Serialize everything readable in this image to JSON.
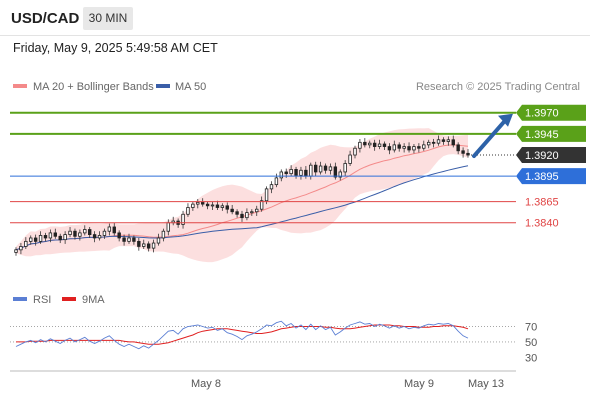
{
  "header": {
    "symbol": "USD/CAD",
    "timeframe": "30 MIN",
    "datetime": "Friday, May 9, 2025 5:49:58 AM CET"
  },
  "chart_data": [
    {
      "type": "candlestick",
      "legend": [
        {
          "name": "MA 20 + Bollinger Bands",
          "color": "#f48a8a"
        },
        {
          "name": "MA 50",
          "color": "#3a5ea8"
        }
      ],
      "credit": "Research © 2025 Trading Central",
      "x_ticks": [
        "May 8",
        "May 9",
        "May 13"
      ],
      "ylim": [
        1.377,
        1.3985
      ],
      "current_price": {
        "label": "1.3920",
        "value": 1.392,
        "color": "#333333"
      },
      "levels": [
        {
          "label": "1.3970",
          "value": 1.397,
          "kind": "resistance-target",
          "color": "#5aa119"
        },
        {
          "label": "1.3945",
          "value": 1.3945,
          "kind": "resistance",
          "color": "#5aa119"
        },
        {
          "label": "1.3895",
          "value": 1.3895,
          "kind": "pivot",
          "color": "#2e6fd9"
        },
        {
          "label": "1.3865",
          "value": 1.3865,
          "kind": "support",
          "color": "#e04545"
        },
        {
          "label": "1.3840",
          "value": 1.384,
          "kind": "support",
          "color": "#e04545"
        }
      ],
      "close_path": [
        1.3808,
        1.3812,
        1.3818,
        1.3822,
        1.3818,
        1.3825,
        1.3822,
        1.3828,
        1.3824,
        1.382,
        1.3826,
        1.383,
        1.3824,
        1.3828,
        1.3832,
        1.3826,
        1.3822,
        1.3825,
        1.383,
        1.3835,
        1.3828,
        1.3822,
        1.3818,
        1.3822,
        1.3818,
        1.3812,
        1.3815,
        1.381,
        1.3816,
        1.3822,
        1.383,
        1.384,
        1.3842,
        1.3838,
        1.385,
        1.3858,
        1.3862,
        1.3864,
        1.3862,
        1.386,
        1.3861,
        1.3858,
        1.386,
        1.3856,
        1.3853,
        1.385,
        1.3846,
        1.3852,
        1.3853,
        1.3856,
        1.3866,
        1.388,
        1.3885,
        1.3893,
        1.39,
        1.3898,
        1.3903,
        1.3896,
        1.3902,
        1.3895,
        1.3908,
        1.39,
        1.3907,
        1.3902,
        1.3906,
        1.3894,
        1.39,
        1.391,
        1.392,
        1.3928,
        1.3935,
        1.3932,
        1.3934,
        1.393,
        1.3933,
        1.393,
        1.3926,
        1.3932,
        1.3928,
        1.393,
        1.3926,
        1.393,
        1.3928,
        1.3932,
        1.3935,
        1.3934,
        1.3938,
        1.3936,
        1.3938,
        1.3932,
        1.3925,
        1.3922,
        1.392
      ]
    },
    {
      "type": "line",
      "legend": [
        {
          "name": "RSI",
          "color": "#5b7fd4"
        },
        {
          "name": "9MA",
          "color": "#e02020"
        }
      ],
      "y_ticks": [
        70,
        50,
        30
      ],
      "ylim": [
        20,
        85
      ],
      "rsi": [
        44,
        47,
        50,
        52,
        49,
        53,
        50,
        54,
        51,
        48,
        52,
        55,
        50,
        53,
        56,
        51,
        48,
        51,
        55,
        58,
        52,
        47,
        44,
        47,
        44,
        41,
        45,
        42,
        47,
        52,
        58,
        64,
        65,
        60,
        67,
        70,
        71,
        72,
        70,
        68,
        69,
        65,
        67,
        62,
        60,
        57,
        53,
        58,
        60,
        63,
        67,
        72,
        71,
        75,
        77,
        71,
        74,
        68,
        72,
        66,
        73,
        66,
        71,
        66,
        69,
        59,
        63,
        68,
        72,
        74,
        76,
        73,
        74,
        70,
        73,
        71,
        68,
        71,
        68,
        70,
        67,
        69,
        68,
        71,
        73,
        72,
        74,
        73,
        74,
        71,
        64,
        58,
        55
      ],
      "ma9": [
        50,
        50,
        50,
        51,
        51,
        51,
        51,
        52,
        52,
        52,
        52,
        52,
        52,
        52,
        52,
        52,
        52,
        52,
        52,
        52,
        52,
        52,
        51,
        50,
        50,
        49,
        48,
        47,
        47,
        47,
        48,
        49,
        51,
        53,
        55,
        57,
        59,
        62,
        64,
        65,
        66,
        67,
        67,
        67,
        66,
        65,
        64,
        63,
        62,
        61,
        61,
        62,
        63,
        65,
        67,
        68,
        69,
        70,
        70,
        70,
        70,
        70,
        70,
        69,
        69,
        68,
        67,
        67,
        67,
        68,
        69,
        70,
        71,
        72,
        72,
        72,
        72,
        71,
        71,
        70,
        70,
        70,
        69,
        69,
        69,
        70,
        70,
        71,
        71,
        71,
        70,
        69,
        67
      ]
    }
  ]
}
